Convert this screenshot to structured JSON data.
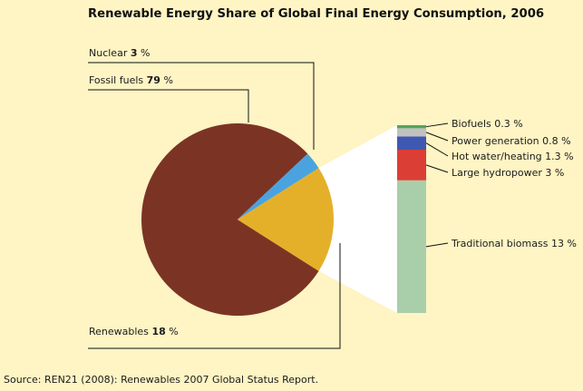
{
  "chart_data": {
    "type": "pie",
    "title": "Renewable Energy Share of Global Final Energy Consumption, 2006",
    "pie": {
      "slices": [
        {
          "label": "Fossil fuels",
          "value": 79,
          "unit": "%",
          "color": "#7b3424"
        },
        {
          "label": "Nuclear",
          "value": 3,
          "unit": "%",
          "color": "#4aa3df"
        },
        {
          "label": "Renewables",
          "value": 18,
          "unit": "%",
          "color": "#e4b02a"
        }
      ]
    },
    "breakdown": {
      "parent": "Renewables",
      "segments": [
        {
          "label": "Traditional biomass",
          "value": 13,
          "unit": "%",
          "color": "#a9cfaa"
        },
        {
          "label": "Large hydropower",
          "value": 3,
          "unit": "%",
          "color": "#db3e35"
        },
        {
          "label": "Hot water/heating",
          "value": 1.3,
          "unit": "%",
          "color": "#3f58b2"
        },
        {
          "label": "Power generation",
          "value": 0.8,
          "unit": "%",
          "color": "#c1c1c1"
        },
        {
          "label": "Biofuels",
          "value": 0.3,
          "unit": "%",
          "color": "#55a45c"
        }
      ]
    },
    "source": "Source: REN21 (2008): Renewables 2007 Global Status Report."
  }
}
